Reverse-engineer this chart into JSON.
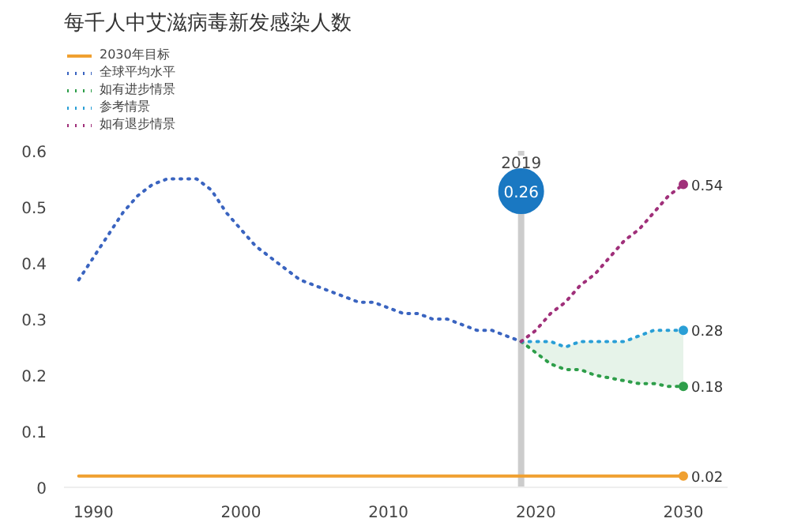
{
  "chart_data": {
    "type": "line",
    "title": "每千人中艾滋病毒新发感染人数",
    "legend": "top left",
    "line_style": "dotted",
    "xlim": [
      1988,
      2033
    ],
    "ylim": [
      0,
      0.6
    ],
    "xticks": [
      1990,
      2000,
      2010,
      2020,
      2030
    ],
    "yticks": [
      0,
      0.1,
      0.2,
      0.3,
      0.4,
      0.5,
      0.6
    ],
    "grid": false,
    "series": [
      {
        "name": "2030年目标",
        "color": "#f0a030",
        "line_style": "solid",
        "x": [
          1989,
          2030
        ],
        "values": [
          0.02,
          0.02
        ],
        "value_labels": [
          null,
          "0.02"
        ]
      },
      {
        "name": "全球平均水平",
        "color": "#3a64c0",
        "x": [
          1989,
          1990,
          1991,
          1992,
          1993,
          1994,
          1995,
          1996,
          1997,
          1998,
          1999,
          2000,
          2001,
          2002,
          2003,
          2004,
          2005,
          2006,
          2007,
          2008,
          2009,
          2010,
          2011,
          2012,
          2013,
          2014,
          2015,
          2016,
          2017,
          2018,
          2019
        ],
        "values": [
          0.37,
          0.41,
          0.45,
          0.49,
          0.52,
          0.54,
          0.55,
          0.55,
          0.55,
          0.53,
          0.49,
          0.46,
          0.43,
          0.41,
          0.39,
          0.37,
          0.36,
          0.35,
          0.34,
          0.33,
          0.33,
          0.32,
          0.31,
          0.31,
          0.3,
          0.3,
          0.29,
          0.28,
          0.28,
          0.27,
          0.26
        ]
      },
      {
        "name": "如有进步情景",
        "color": "#2e9e4a",
        "x": [
          2019,
          2020,
          2021,
          2022,
          2023,
          2024,
          2025,
          2026,
          2027,
          2028,
          2029,
          2030
        ],
        "values": [
          0.26,
          0.24,
          0.22,
          0.21,
          0.21,
          0.2,
          0.195,
          0.19,
          0.185,
          0.185,
          0.18,
          0.18
        ],
        "lower": [
          0.26,
          0.24,
          0.22,
          0.21,
          0.21,
          0.2,
          0.195,
          0.19,
          0.185,
          0.185,
          0.18,
          0.18
        ],
        "upper": [
          0.26,
          0.26,
          0.26,
          0.25,
          0.26,
          0.26,
          0.26,
          0.26,
          0.27,
          0.28,
          0.28,
          0.28
        ],
        "value_labels": [
          null,
          null,
          null,
          null,
          null,
          null,
          null,
          null,
          null,
          null,
          null,
          "0.18"
        ]
      },
      {
        "name": "参考情景",
        "color": "#2a9fd6",
        "x": [
          2019,
          2020,
          2021,
          2022,
          2023,
          2024,
          2025,
          2026,
          2027,
          2028,
          2029,
          2030
        ],
        "values": [
          0.26,
          0.26,
          0.26,
          0.25,
          0.26,
          0.26,
          0.26,
          0.26,
          0.27,
          0.28,
          0.28,
          0.28
        ],
        "value_labels": [
          null,
          null,
          null,
          null,
          null,
          null,
          null,
          null,
          null,
          null,
          null,
          "0.28"
        ]
      },
      {
        "name": "如有退步情景",
        "color": "#a0307a",
        "x": [
          2019,
          2020,
          2021,
          2022,
          2023,
          2024,
          2025,
          2026,
          2027,
          2028,
          2029,
          2030
        ],
        "values": [
          0.26,
          0.28,
          0.31,
          0.33,
          0.36,
          0.38,
          0.41,
          0.44,
          0.46,
          0.49,
          0.52,
          0.54
        ],
        "value_labels": [
          null,
          null,
          null,
          null,
          null,
          null,
          null,
          null,
          null,
          null,
          null,
          "0.54"
        ]
      }
    ],
    "ref_lines": [
      {
        "axis": "x",
        "value": 2019,
        "label": "2019",
        "color": "#cccccc"
      }
    ],
    "annotations": [
      "0.26"
    ]
  }
}
